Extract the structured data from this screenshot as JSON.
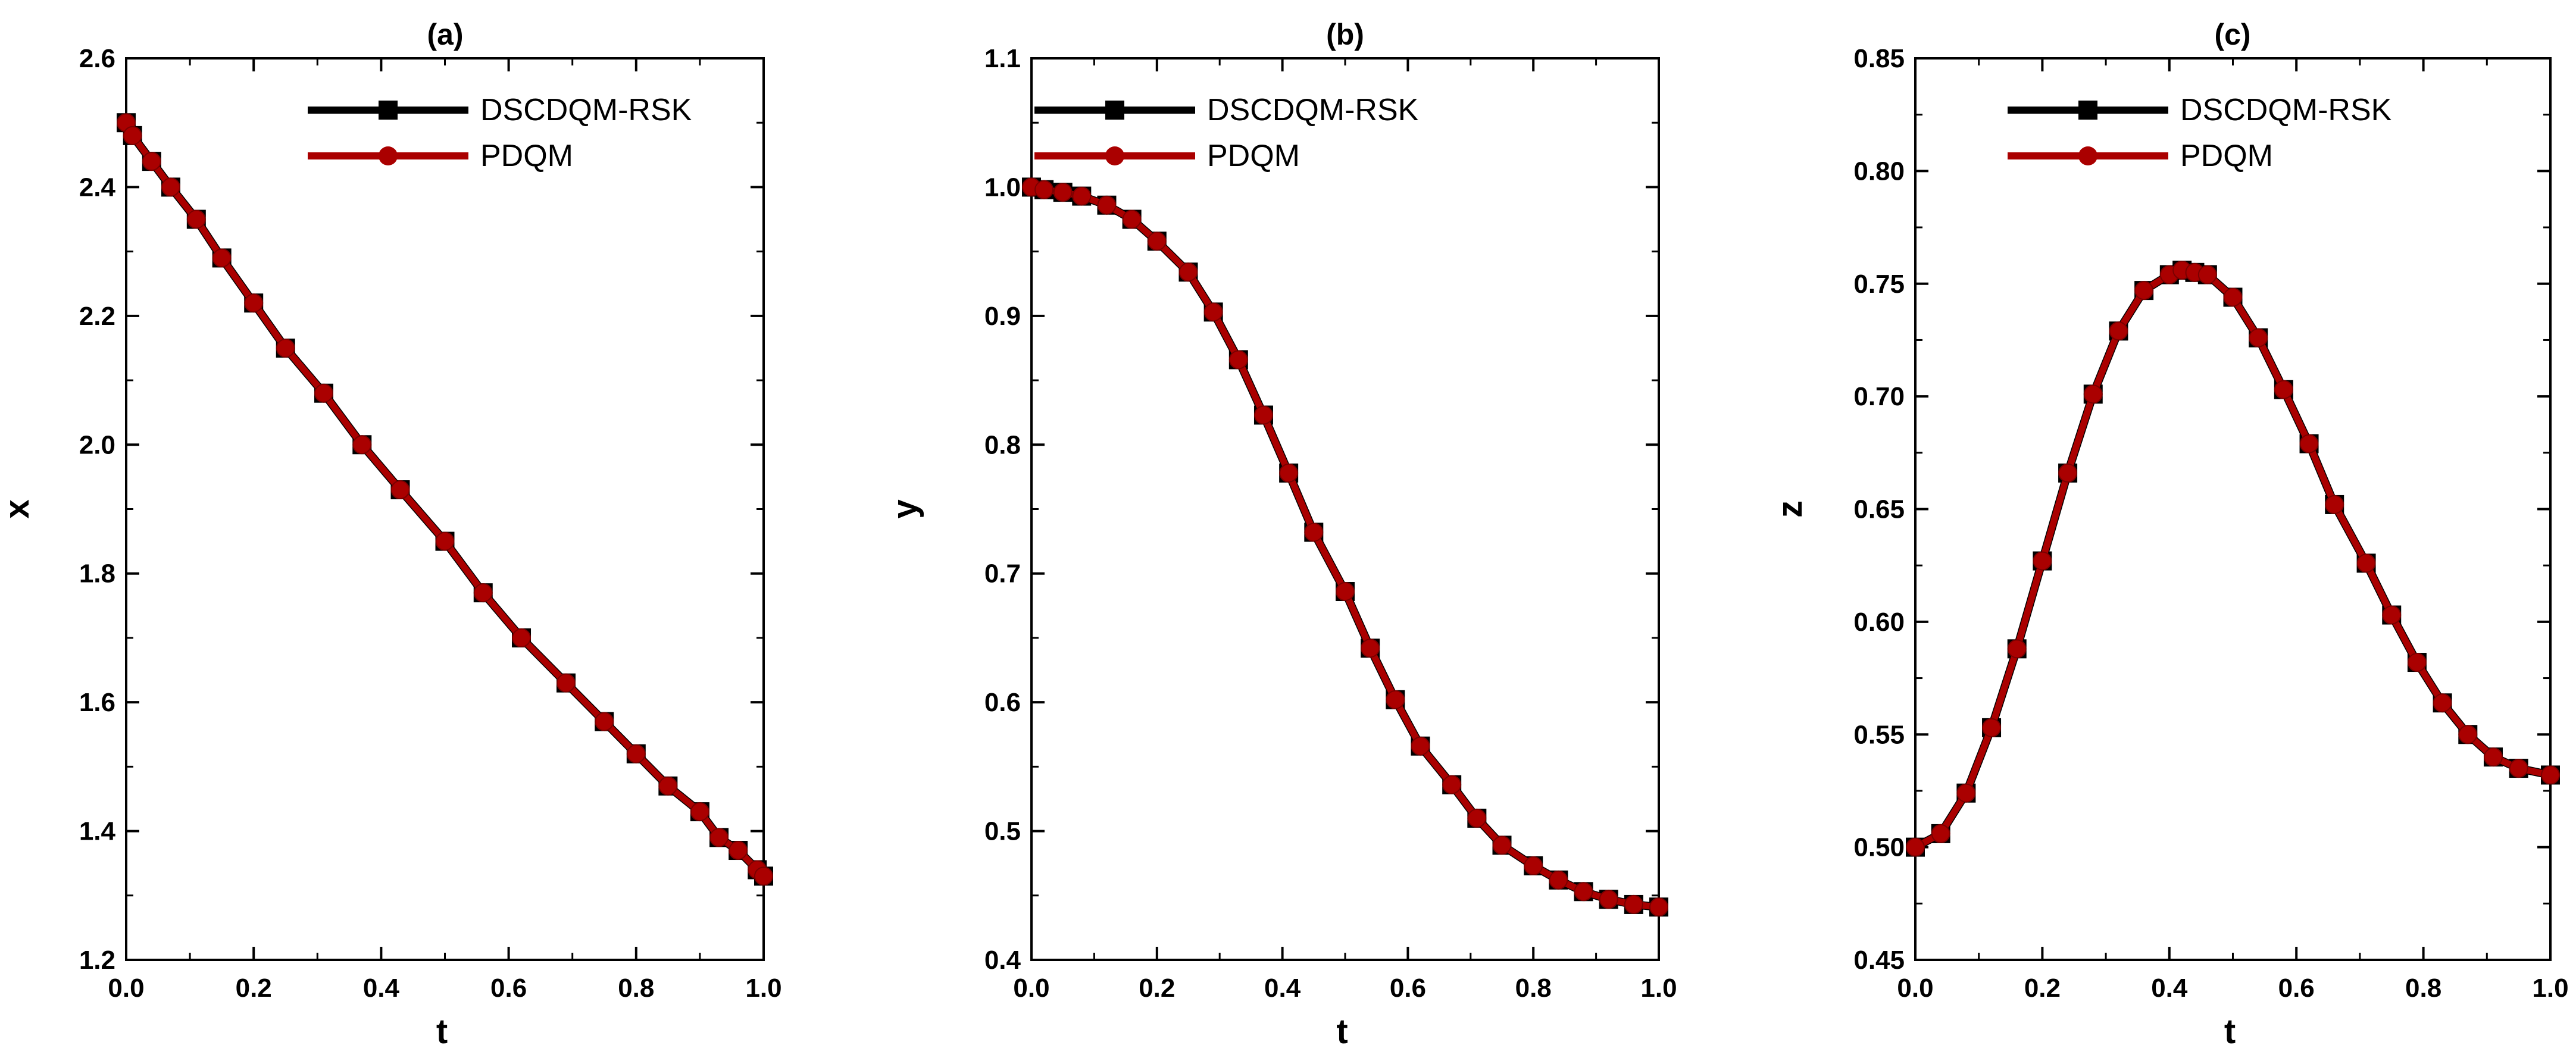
{
  "chart_data": [
    {
      "type": "line",
      "title": "(a)",
      "xlabel": "t",
      "ylabel": "x",
      "xlim": [
        0.0,
        1.0
      ],
      "ylim": [
        1.2,
        2.6
      ],
      "xticks": [
        "0.0",
        "0.2",
        "0.4",
        "0.6",
        "0.8",
        "1.0"
      ],
      "yticks": [
        "1.2",
        "1.4",
        "1.6",
        "1.8",
        "2.0",
        "2.2",
        "2.4",
        "2.6"
      ],
      "x": [
        0.0,
        0.01,
        0.04,
        0.07,
        0.11,
        0.15,
        0.2,
        0.25,
        0.31,
        0.37,
        0.43,
        0.5,
        0.56,
        0.62,
        0.69,
        0.75,
        0.8,
        0.85,
        0.9,
        0.93,
        0.96,
        0.99,
        1.0
      ],
      "series": [
        {
          "name": "DSCDQM-RSK",
          "color": "#000000",
          "marker": "square",
          "values": [
            2.5,
            2.48,
            2.44,
            2.4,
            2.35,
            2.29,
            2.22,
            2.15,
            2.08,
            2.0,
            1.93,
            1.85,
            1.77,
            1.7,
            1.63,
            1.57,
            1.52,
            1.47,
            1.43,
            1.39,
            1.37,
            1.34,
            1.33
          ]
        },
        {
          "name": "PDQM",
          "color": "#aa0000",
          "marker": "circle",
          "values": [
            2.5,
            2.48,
            2.44,
            2.4,
            2.35,
            2.29,
            2.22,
            2.15,
            2.08,
            2.0,
            1.93,
            1.85,
            1.77,
            1.7,
            1.63,
            1.57,
            1.52,
            1.47,
            1.43,
            1.39,
            1.37,
            1.34,
            1.33
          ]
        }
      ],
      "legend": "top-right"
    },
    {
      "type": "line",
      "title": "(b)",
      "xlabel": "t",
      "ylabel": "y",
      "xlim": [
        0.0,
        1.0
      ],
      "ylim": [
        0.4,
        1.1
      ],
      "xticks": [
        "0.0",
        "0.2",
        "0.4",
        "0.6",
        "0.8",
        "1.0"
      ],
      "yticks": [
        "0.4",
        "0.5",
        "0.6",
        "0.7",
        "0.8",
        "0.9",
        "1.0",
        "1.1"
      ],
      "x": [
        0.0,
        0.02,
        0.05,
        0.08,
        0.12,
        0.16,
        0.2,
        0.25,
        0.29,
        0.33,
        0.37,
        0.41,
        0.45,
        0.5,
        0.54,
        0.58,
        0.62,
        0.67,
        0.71,
        0.75,
        0.8,
        0.84,
        0.88,
        0.92,
        0.96,
        1.0
      ],
      "series": [
        {
          "name": "DSCDQM-RSK",
          "color": "#000000",
          "marker": "square",
          "values": [
            1.0,
            0.998,
            0.996,
            0.993,
            0.986,
            0.975,
            0.958,
            0.934,
            0.903,
            0.866,
            0.823,
            0.778,
            0.732,
            0.686,
            0.642,
            0.602,
            0.566,
            0.536,
            0.51,
            0.489,
            0.473,
            0.462,
            0.453,
            0.447,
            0.443,
            0.441
          ]
        },
        {
          "name": "PDQM",
          "color": "#aa0000",
          "marker": "circle",
          "values": [
            1.0,
            0.998,
            0.996,
            0.993,
            0.986,
            0.975,
            0.958,
            0.934,
            0.903,
            0.866,
            0.823,
            0.778,
            0.732,
            0.686,
            0.642,
            0.602,
            0.566,
            0.536,
            0.51,
            0.489,
            0.473,
            0.462,
            0.453,
            0.447,
            0.443,
            0.441
          ]
        }
      ],
      "legend": "top-right"
    },
    {
      "type": "line",
      "title": "(c)",
      "xlabel": "t",
      "ylabel": "z",
      "xlim": [
        0.0,
        1.0
      ],
      "ylim": [
        0.45,
        0.85
      ],
      "xticks": [
        "0.0",
        "0.2",
        "0.4",
        "0.6",
        "0.8",
        "1.0"
      ],
      "yticks": [
        "0.45",
        "0.50",
        "0.55",
        "0.60",
        "0.65",
        "0.70",
        "0.75",
        "0.80",
        "0.85"
      ],
      "x": [
        0.0,
        0.04,
        0.08,
        0.12,
        0.16,
        0.2,
        0.24,
        0.28,
        0.32,
        0.36,
        0.4,
        0.42,
        0.44,
        0.46,
        0.5,
        0.54,
        0.58,
        0.62,
        0.66,
        0.71,
        0.75,
        0.79,
        0.83,
        0.87,
        0.91,
        0.95,
        1.0
      ],
      "series": [
        {
          "name": "DSCDQM-RSK",
          "color": "#000000",
          "marker": "square",
          "values": [
            0.5,
            0.506,
            0.524,
            0.553,
            0.588,
            0.627,
            0.666,
            0.701,
            0.729,
            0.747,
            0.754,
            0.756,
            0.755,
            0.754,
            0.744,
            0.726,
            0.703,
            0.679,
            0.652,
            0.626,
            0.603,
            0.582,
            0.564,
            0.55,
            0.54,
            0.535,
            0.532
          ]
        },
        {
          "name": "PDQM",
          "color": "#aa0000",
          "marker": "circle",
          "values": [
            0.5,
            0.506,
            0.524,
            0.553,
            0.588,
            0.627,
            0.666,
            0.701,
            0.729,
            0.747,
            0.754,
            0.756,
            0.755,
            0.754,
            0.744,
            0.726,
            0.703,
            0.679,
            0.652,
            0.626,
            0.603,
            0.582,
            0.564,
            0.55,
            0.54,
            0.535,
            0.532
          ]
        }
      ],
      "legend": "top-right"
    }
  ]
}
